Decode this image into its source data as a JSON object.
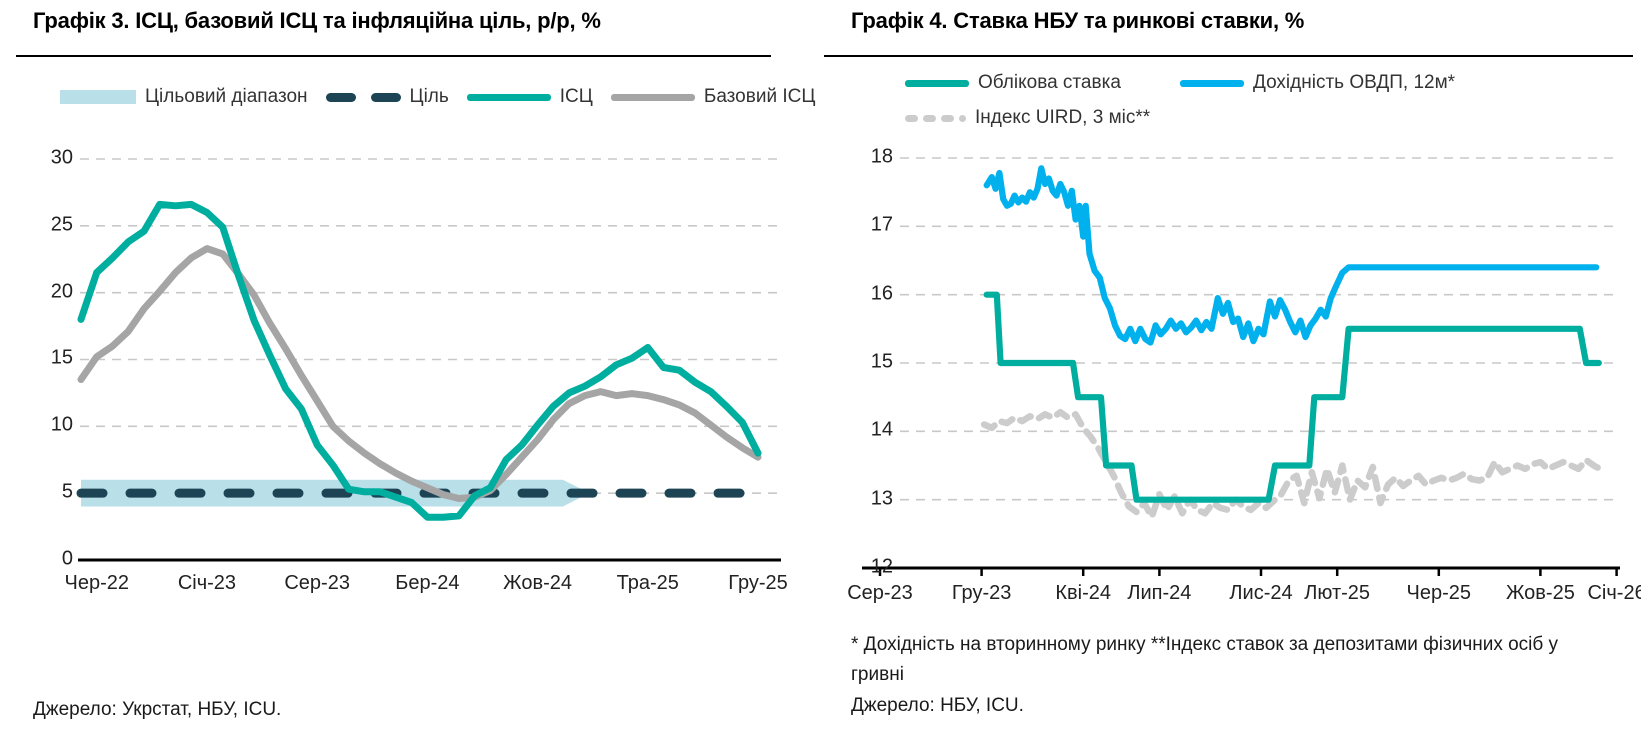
{
  "ui": {
    "left": {
      "title": "Графік 3. ІСЦ, базовий ІСЦ та інфляційна ціль, р/р, %",
      "legend": {
        "band": "Цільовий діапазон",
        "target": "Ціль",
        "cpi": "ІСЦ",
        "core": "Базовий ІСЦ"
      },
      "source": "Джерело: Укрстат, НБУ, ICU."
    },
    "right": {
      "title": "Графік 4. Ставка НБУ та ринкові ставки, %",
      "legend": {
        "key_rate": "Облікова ставка",
        "ovdp": "Дохідність ОВДП, 12м*",
        "uird": "Індекс UIRD, 3 міс**"
      },
      "footnote": "* Дохідність на вторинному ринку **Індекс ставок за депозитами фізичних осіб у гривні",
      "source": "Джерело: НБУ, ICU."
    }
  },
  "colors": {
    "teal": "#00aea0",
    "gray_line": "#a5a5a5",
    "band": "#b9dfe9",
    "navy": "#1c4454",
    "blue": "#00b1ee",
    "uird": "#cccccc"
  },
  "chart_data": [
    {
      "id": "chart3",
      "type": "line",
      "title": "Графік 3. ІСЦ, базовий ІСЦ та інфляційна ціль, р/р, %",
      "x_unit": "months, index 0 = Тра-22 (May-2022), monthly to Гру-25",
      "months_span": 43,
      "x_ticks": [
        {
          "label": "Чер-22",
          "m": 1
        },
        {
          "label": "Січ-23",
          "m": 8
        },
        {
          "label": "Сер-23",
          "m": 15
        },
        {
          "label": "Бер-24",
          "m": 22
        },
        {
          "label": "Жов-24",
          "m": 29
        },
        {
          "label": "Тра-25",
          "m": 36
        },
        {
          "label": "Гру-25",
          "m": 43
        }
      ],
      "y_ticks": [
        0,
        5,
        10,
        15,
        20,
        25,
        30
      ],
      "ylim": [
        0,
        31
      ],
      "grid": "horizontal dashed",
      "legend_position": "top",
      "target_band": {
        "name": "Цільовий діапазон",
        "range": [
          4,
          6
        ],
        "end_m": 30.6,
        "tip_m": 32.3
      },
      "target_line": {
        "name": "Ціль",
        "value": 5,
        "style": "dashed"
      },
      "series": [
        {
          "name": "ІСЦ",
          "color_key": "teal",
          "values": [
            18.0,
            21.5,
            22.6,
            23.8,
            24.6,
            26.6,
            26.5,
            26.6,
            26.0,
            24.9,
            21.3,
            17.9,
            15.3,
            12.8,
            11.3,
            8.6,
            7.1,
            5.3,
            5.1,
            5.1,
            4.7,
            4.3,
            3.2,
            3.2,
            3.3,
            4.8,
            5.4,
            7.5,
            8.6,
            10.1,
            11.5,
            12.5,
            13.0,
            13.7,
            14.6,
            15.1,
            15.9,
            14.4,
            14.2,
            13.3,
            12.6,
            11.5,
            10.3,
            8.0
          ]
        },
        {
          "name": "Базовий ІСЦ",
          "color_key": "gray_line",
          "values": [
            13.5,
            15.2,
            16.0,
            17.1,
            18.8,
            20.1,
            21.5,
            22.6,
            23.3,
            22.9,
            21.4,
            19.8,
            17.7,
            15.8,
            13.8,
            11.9,
            10.0,
            8.9,
            8.0,
            7.2,
            6.5,
            5.9,
            5.4,
            4.9,
            4.6,
            4.7,
            5.2,
            6.4,
            7.7,
            9.0,
            10.5,
            11.7,
            12.3,
            12.6,
            12.3,
            12.45,
            12.3,
            12.0,
            11.6,
            11.0,
            10.1,
            9.2,
            8.4,
            7.7
          ]
        }
      ],
      "source": "Джерело: Укрстат, НБУ, ICU."
    },
    {
      "id": "chart4",
      "type": "line",
      "title": "Графік 4. Ставка НБУ та ринкові ставки, %",
      "x_unit": "months, index 0 = Сер-23 (Aug-2023), to Січ-26 (Jan-2026)",
      "months_span": 29,
      "x_ticks": [
        {
          "label": "Сер-23",
          "m": 0
        },
        {
          "label": "Гру-23",
          "m": 4
        },
        {
          "label": "Кві-24",
          "m": 8
        },
        {
          "label": "Лип-24",
          "m": 11
        },
        {
          "label": "Лис-24",
          "m": 15
        },
        {
          "label": "Лют-25",
          "m": 18
        },
        {
          "label": "Чер-25",
          "m": 22
        },
        {
          "label": "Жов-25",
          "m": 26
        },
        {
          "label": "Січ-26",
          "m": 29
        }
      ],
      "y_ticks": [
        12,
        13,
        14,
        15,
        16,
        17,
        18
      ],
      "ylim": [
        12,
        18
      ],
      "grid": "horizontal dashed",
      "legend_position": "top",
      "series": [
        {
          "name": "Облікова ставка",
          "color_key": "teal",
          "style": "step",
          "points": [
            [
              4.2,
              16
            ],
            [
              4.6,
              16
            ],
            [
              4.75,
              15
            ],
            [
              7.6,
              15
            ],
            [
              7.8,
              14.5
            ],
            [
              8.7,
              14.5
            ],
            [
              8.9,
              13.5
            ],
            [
              9.9,
              13.5
            ],
            [
              10.1,
              13
            ],
            [
              15.3,
              13
            ],
            [
              15.55,
              13.5
            ],
            [
              16.9,
              13.5
            ],
            [
              17.1,
              14.5
            ],
            [
              18.2,
              14.5
            ],
            [
              18.45,
              15.5
            ],
            [
              27.55,
              15.5
            ],
            [
              27.8,
              15
            ],
            [
              28.3,
              15
            ]
          ]
        },
        {
          "name": "Дохідність ОВДП, 12м*",
          "color_key": "blue",
          "style": "solid",
          "points": [
            [
              4.2,
              17.6
            ],
            [
              4.4,
              17.72
            ],
            [
              4.55,
              17.55
            ],
            [
              4.7,
              17.78
            ],
            [
              4.85,
              17.4
            ],
            [
              5.0,
              17.3
            ],
            [
              5.15,
              17.33
            ],
            [
              5.3,
              17.45
            ],
            [
              5.45,
              17.35
            ],
            [
              5.6,
              17.42
            ],
            [
              5.75,
              17.36
            ],
            [
              5.9,
              17.5
            ],
            [
              6.05,
              17.42
            ],
            [
              6.2,
              17.55
            ],
            [
              6.35,
              17.85
            ],
            [
              6.5,
              17.62
            ],
            [
              6.65,
              17.7
            ],
            [
              6.8,
              17.52
            ],
            [
              6.95,
              17.45
            ],
            [
              7.1,
              17.62
            ],
            [
              7.25,
              17.5
            ],
            [
              7.4,
              17.3
            ],
            [
              7.55,
              17.52
            ],
            [
              7.7,
              17.1
            ],
            [
              7.85,
              17.3
            ],
            [
              8.0,
              16.85
            ],
            [
              8.1,
              17.3
            ],
            [
              8.25,
              16.6
            ],
            [
              8.45,
              16.35
            ],
            [
              8.65,
              16.25
            ],
            [
              8.85,
              15.95
            ],
            [
              9.05,
              15.8
            ],
            [
              9.25,
              15.55
            ],
            [
              9.45,
              15.4
            ],
            [
              9.65,
              15.35
            ],
            [
              9.85,
              15.5
            ],
            [
              10.05,
              15.32
            ],
            [
              10.25,
              15.5
            ],
            [
              10.45,
              15.35
            ],
            [
              10.65,
              15.3
            ],
            [
              10.85,
              15.55
            ],
            [
              11.05,
              15.42
            ],
            [
              11.25,
              15.5
            ],
            [
              11.45,
              15.62
            ],
            [
              11.65,
              15.5
            ],
            [
              11.85,
              15.58
            ],
            [
              12.05,
              15.45
            ],
            [
              12.25,
              15.52
            ],
            [
              12.45,
              15.62
            ],
            [
              12.65,
              15.48
            ],
            [
              12.85,
              15.6
            ],
            [
              13.05,
              15.5
            ],
            [
              13.3,
              15.95
            ],
            [
              13.5,
              15.72
            ],
            [
              13.7,
              15.88
            ],
            [
              13.9,
              15.6
            ],
            [
              14.1,
              15.65
            ],
            [
              14.3,
              15.38
            ],
            [
              14.5,
              15.58
            ],
            [
              14.7,
              15.32
            ],
            [
              14.9,
              15.5
            ],
            [
              15.1,
              15.42
            ],
            [
              15.35,
              15.9
            ],
            [
              15.55,
              15.68
            ],
            [
              15.75,
              15.92
            ],
            [
              15.95,
              15.78
            ],
            [
              16.15,
              15.6
            ],
            [
              16.35,
              15.45
            ],
            [
              16.55,
              15.62
            ],
            [
              16.75,
              15.38
            ],
            [
              16.95,
              15.55
            ],
            [
              17.15,
              15.65
            ],
            [
              17.35,
              15.78
            ],
            [
              17.55,
              15.68
            ],
            [
              17.75,
              15.95
            ],
            [
              17.95,
              16.12
            ],
            [
              18.2,
              16.32
            ],
            [
              18.45,
              16.4
            ],
            [
              28.2,
              16.4
            ]
          ]
        },
        {
          "name": "Індекс UIRD, 3 міс**",
          "color_key": "uird",
          "style": "dashed",
          "points": [
            [
              4.1,
              14.1
            ],
            [
              4.4,
              14.05
            ],
            [
              4.7,
              14.15
            ],
            [
              5.0,
              14.12
            ],
            [
              5.3,
              14.2
            ],
            [
              5.6,
              14.15
            ],
            [
              5.9,
              14.22
            ],
            [
              6.2,
              14.18
            ],
            [
              6.5,
              14.25
            ],
            [
              6.8,
              14.2
            ],
            [
              7.1,
              14.28
            ],
            [
              7.4,
              14.2
            ],
            [
              7.7,
              14.25
            ],
            [
              8.0,
              14.05
            ],
            [
              8.3,
              13.92
            ],
            [
              8.6,
              13.75
            ],
            [
              8.9,
              13.55
            ],
            [
              9.2,
              13.35
            ],
            [
              9.5,
              13.1
            ],
            [
              9.8,
              12.9
            ],
            [
              10.1,
              12.82
            ],
            [
              10.4,
              12.95
            ],
            [
              10.7,
              12.75
            ],
            [
              11.0,
              13.08
            ],
            [
              11.3,
              12.85
            ],
            [
              11.6,
              13.05
            ],
            [
              11.9,
              12.8
            ],
            [
              12.2,
              13.0
            ],
            [
              12.5,
              12.85
            ],
            [
              12.8,
              12.8
            ],
            [
              13.1,
              12.95
            ],
            [
              13.4,
              12.88
            ],
            [
              13.7,
              12.85
            ],
            [
              14.0,
              13.0
            ],
            [
              14.3,
              12.9
            ],
            [
              14.6,
              12.85
            ],
            [
              14.9,
              12.95
            ],
            [
              15.2,
              12.88
            ],
            [
              15.5,
              12.98
            ],
            [
              15.8,
              13.08
            ],
            [
              16.1,
              13.28
            ],
            [
              16.4,
              13.35
            ],
            [
              16.7,
              12.95
            ],
            [
              17.0,
              13.4
            ],
            [
              17.3,
              13.02
            ],
            [
              17.6,
              13.45
            ],
            [
              17.9,
              13.1
            ],
            [
              18.2,
              13.5
            ],
            [
              18.5,
              13.0
            ],
            [
              18.8,
              13.28
            ],
            [
              19.1,
              13.18
            ],
            [
              19.4,
              13.48
            ],
            [
              19.7,
              12.95
            ],
            [
              20.0,
              13.22
            ],
            [
              20.3,
              13.32
            ],
            [
              20.6,
              13.2
            ],
            [
              20.9,
              13.28
            ],
            [
              21.2,
              13.35
            ],
            [
              21.5,
              13.22
            ],
            [
              21.8,
              13.28
            ],
            [
              22.1,
              13.32
            ],
            [
              22.4,
              13.28
            ],
            [
              22.7,
              13.32
            ],
            [
              23.0,
              13.38
            ],
            [
              23.3,
              13.3
            ],
            [
              23.6,
              13.28
            ],
            [
              23.9,
              13.32
            ],
            [
              24.2,
              13.55
            ],
            [
              24.5,
              13.4
            ],
            [
              24.8,
              13.45
            ],
            [
              25.1,
              13.5
            ],
            [
              25.4,
              13.45
            ],
            [
              25.7,
              13.52
            ],
            [
              26.0,
              13.55
            ],
            [
              26.3,
              13.45
            ],
            [
              26.6,
              13.5
            ],
            [
              26.9,
              13.55
            ],
            [
              27.2,
              13.5
            ],
            [
              27.5,
              13.45
            ],
            [
              27.8,
              13.58
            ],
            [
              28.1,
              13.5
            ],
            [
              28.35,
              13.45
            ]
          ]
        }
      ],
      "footnote": "* Дохідність на вторинному ринку **Індекс ставок за депозитами фізичних осіб у гривні",
      "source": "Джерело: НБУ, ICU."
    }
  ]
}
